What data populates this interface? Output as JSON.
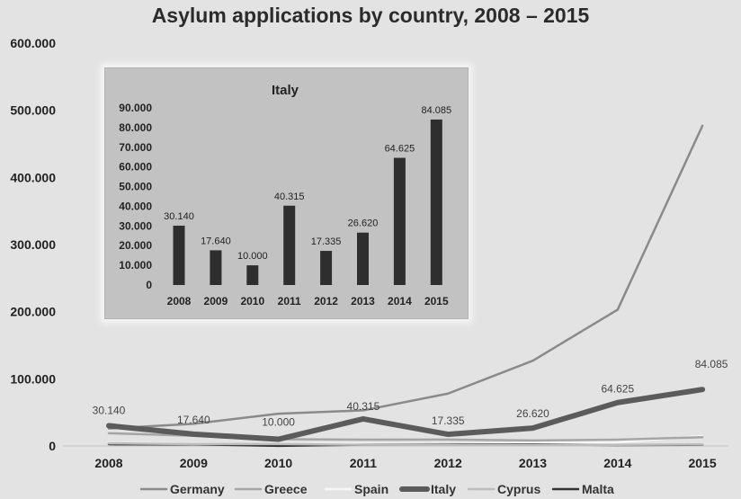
{
  "chart_data": [
    {
      "type": "line",
      "title": "Asylum applications by country, 2008 – 2015",
      "categories": [
        "2008",
        "2009",
        "2010",
        "2011",
        "2012",
        "2013",
        "2014",
        "2015"
      ],
      "y_tick_labels": [
        "0",
        "100.000",
        "200.000",
        "300.000",
        "400.000",
        "500.000",
        "600.000"
      ],
      "ylim": [
        0,
        600000
      ],
      "legend_position": "bottom",
      "series": [
        {
          "name": "Germany",
          "color": "#8a8a8a",
          "values": [
            26000,
            33000,
            48000,
            53000,
            78000,
            127000,
            203000,
            477000
          ]
        },
        {
          "name": "Greece",
          "color": "#a5a5a5",
          "values": [
            19000,
            15000,
            10000,
            9300,
            9600,
            8200,
            9400,
            13000
          ]
        },
        {
          "name": "Spain",
          "color": "#f7f7f7",
          "values": [
            4500,
            3000,
            2700,
            3400,
            2500,
            4500,
            5600,
            14800
          ]
        },
        {
          "name": "Italy",
          "color": "#5b5b5b",
          "values": [
            30140,
            17640,
            10000,
            40315,
            17335,
            26620,
            64625,
            84085
          ],
          "data_labels": [
            "30.140",
            "17.640",
            "10.000",
            "40.315",
            "17.335",
            "26.620",
            "64.625",
            "84.085"
          ]
        },
        {
          "name": "Cyprus",
          "color": "#bcbcbc",
          "values": [
            3900,
            2700,
            2900,
            1800,
            1600,
            1300,
            1700,
            2200
          ]
        },
        {
          "name": "Malta",
          "color": "#333333",
          "values": [
            2600,
            2400,
            200,
            1900,
            2100,
            2200,
            1300,
            1800
          ]
        }
      ]
    },
    {
      "type": "bar",
      "title": "Italy",
      "categories": [
        "2008",
        "2009",
        "2010",
        "2011",
        "2012",
        "2013",
        "2014",
        "2015"
      ],
      "values": [
        30140,
        17640,
        10000,
        40315,
        17335,
        26620,
        64625,
        84085
      ],
      "data_labels": [
        "30.140",
        "17.640",
        "10.000",
        "40.315",
        "17.335",
        "26.620",
        "64.625",
        "84.085"
      ],
      "y_tick_labels": [
        "0",
        "10.000",
        "20.000",
        "30.000",
        "40.000",
        "50.000",
        "60.000",
        "70.000",
        "80.000",
        "90.000"
      ],
      "ylim": [
        0,
        90000
      ],
      "bar_color": "#2e2e2e"
    }
  ]
}
